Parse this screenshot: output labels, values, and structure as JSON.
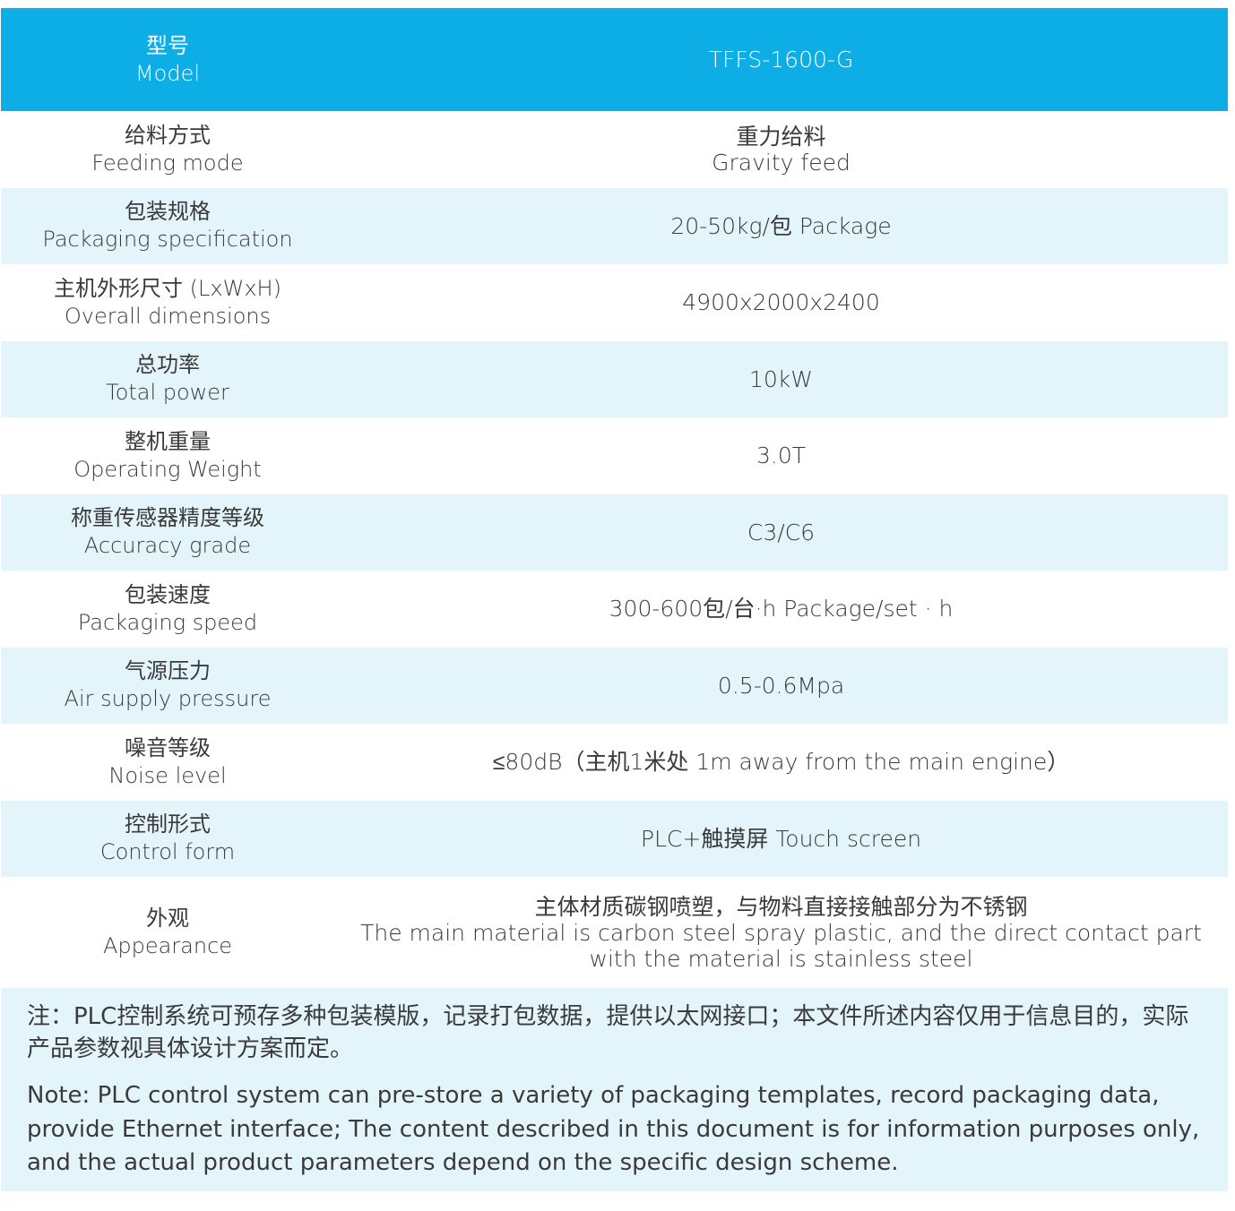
{
  "colors": {
    "header": "#0caee5",
    "alt_row": "#e3f5fb"
  },
  "header": {
    "label_zh": "型号",
    "label_en": "Model",
    "value": "TFFS-1600-G"
  },
  "rows": [
    {
      "zh": "给料方式",
      "en": "Feeding mode",
      "value": [
        "重力给料",
        "Gravity feed"
      ]
    },
    {
      "zh": "包装规格",
      "en": "Packaging specification",
      "value": [
        "20-50kg/包 Package"
      ]
    },
    {
      "zh": "主机外形尺寸 (LxWxH)",
      "en": "Overall dimensions",
      "value": [
        "4900x2000x2400"
      ]
    },
    {
      "zh": "总功率",
      "en": "Total power",
      "value": [
        "10kW"
      ]
    },
    {
      "zh": "整机重量",
      "en": "Operating Weight",
      "value": [
        "3.0T"
      ]
    },
    {
      "zh": "称重传感器精度等级",
      "en": "Accuracy grade",
      "value": [
        "C3/C6"
      ]
    },
    {
      "zh": "包装速度",
      "en": "Packaging speed",
      "value": [
        "300-600包/台·h Package/set · h"
      ]
    },
    {
      "zh": "气源压力",
      "en": "Air supply pressure",
      "value": [
        "0.5-0.6Mpa"
      ]
    },
    {
      "zh": "噪音等级",
      "en": "Noise level",
      "value": [
        "≤80dB（主机1米处 1m away from the main engine）"
      ]
    },
    {
      "zh": "控制形式",
      "en": "Control form",
      "value": [
        "PLC+触摸屏 Touch screen"
      ]
    },
    {
      "zh": "外观",
      "en": "Appearance",
      "value": [
        "主体材质碳钢喷塑，与物料直接接触部分为不锈钢",
        "The main material is carbon steel spray plastic, and the direct contact part",
        "with the material is stainless steel"
      ]
    }
  ],
  "note": {
    "zh": "注：PLC控制系统可预存多种包装模版，记录打包数据，提供以太网接口；本文件所述内容仅用于信息目的，实际产品参数视具体设计方案而定。",
    "en": "Note: PLC control system can pre-store a variety of packaging templates, record packaging data, provide Ethernet interface; The content described in this document is for information purposes only, and the actual product parameters depend on the specific design scheme."
  }
}
